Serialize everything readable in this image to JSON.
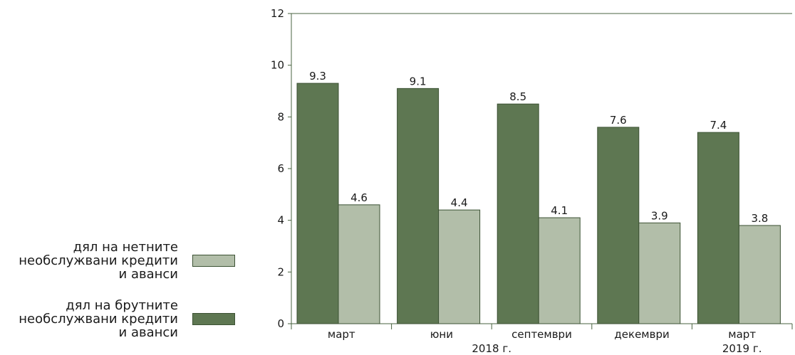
{
  "chart_data": {
    "type": "bar",
    "categories": [
      "март",
      "юни",
      "септември",
      "декември",
      "март"
    ],
    "group_labels": [
      {
        "label": "2018 г.",
        "from": 0,
        "to": 3
      },
      {
        "label": "2019 г.",
        "from": 4,
        "to": 4
      }
    ],
    "series": [
      {
        "name": "дял на брутните необслужвани кредити и аванси",
        "values": [
          9.3,
          9.1,
          8.5,
          7.6,
          7.4
        ],
        "color": "#5e7752"
      },
      {
        "name": "дял на нетните необслужвани кредити и аванси",
        "values": [
          4.6,
          4.4,
          4.1,
          3.9,
          3.8
        ],
        "color": "#b2bea9"
      }
    ],
    "ylim": [
      0,
      12
    ],
    "yticks": [
      0,
      2,
      4,
      6,
      8,
      10,
      12
    ],
    "grid": false,
    "legend_position": "left"
  },
  "legend": {
    "net_label": "дял на нетните\nнеобслужвани кредити\nи аванси",
    "gross_label": "дял на брутните\nнеобслужвани кредити\nи аванси",
    "net_color": "#b2bea9",
    "gross_color": "#5e7752"
  }
}
